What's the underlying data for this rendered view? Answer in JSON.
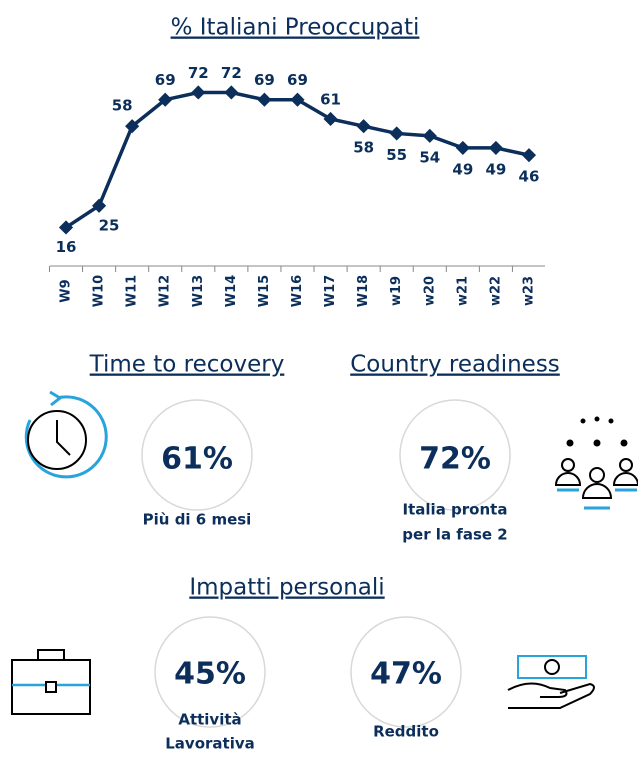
{
  "chart_data": {
    "type": "line",
    "title": "% Italiani Preoccupati",
    "categories": [
      "W9",
      "W10",
      "W11",
      "W12",
      "W13",
      "W14",
      "W15",
      "W16",
      "W17",
      "W18",
      "w19",
      "w20",
      "w21",
      "w22",
      "w23"
    ],
    "values": [
      16,
      25,
      58,
      69,
      72,
      72,
      69,
      69,
      61,
      58,
      55,
      54,
      49,
      49,
      46
    ],
    "color": "#0b2e5b",
    "ylim": [
      0,
      100
    ]
  },
  "sections": [
    {
      "heading": "Time to recovery",
      "value": "61%",
      "caption": [
        "Più di 6 mesi"
      ]
    },
    {
      "heading": "Country readiness",
      "value": "72%",
      "caption": [
        "Italia pronta",
        "per la fase 2"
      ]
    },
    {
      "heading": "Impatti personali",
      "value": "45%",
      "caption": [
        "Attività",
        "Lavorativa"
      ]
    },
    {
      "value": "47%",
      "caption": [
        "Reddito"
      ]
    }
  ]
}
